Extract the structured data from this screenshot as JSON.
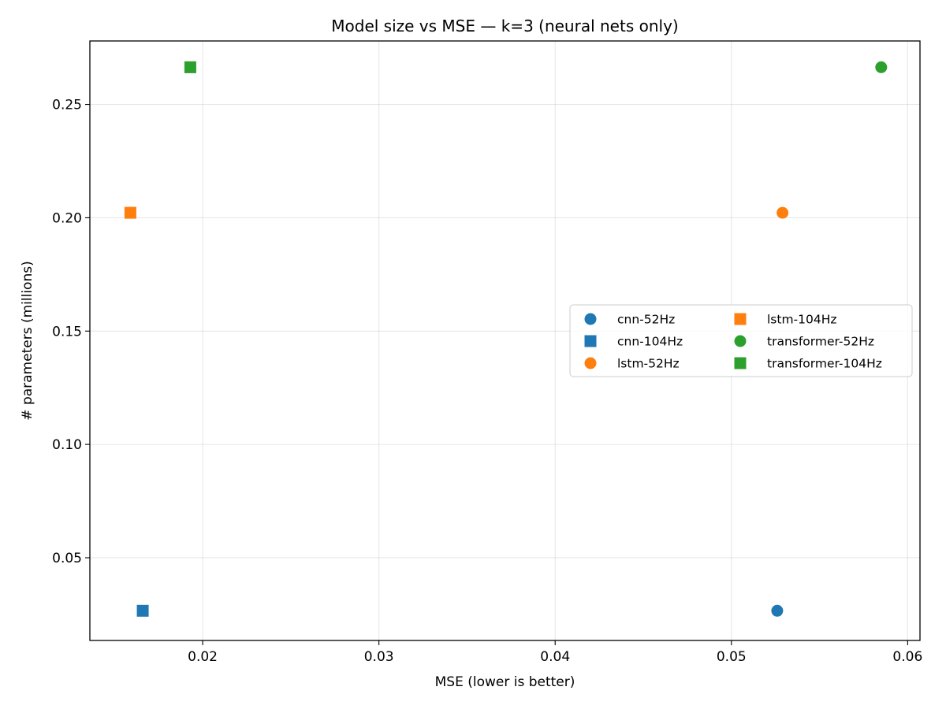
{
  "chart_data": {
    "type": "scatter",
    "title": "Model size vs MSE — k=3  (neural nets only)",
    "xlabel": "MSE (lower is better)",
    "ylabel": "# parameters (millions)",
    "xlim": [
      0.0136,
      0.0607
    ],
    "ylim": [
      0.0135,
      0.278
    ],
    "xticks": [
      0.02,
      0.03,
      0.04,
      0.05,
      0.06
    ],
    "xtick_labels": [
      "0.02",
      "0.03",
      "0.04",
      "0.05",
      "0.06"
    ],
    "yticks": [
      0.05,
      0.1,
      0.15,
      0.2,
      0.25
    ],
    "ytick_labels": [
      "0.05",
      "0.10",
      "0.15",
      "0.20",
      "0.25"
    ],
    "grid": true,
    "legend": {
      "placement": "center-right",
      "columns": 2
    },
    "series": [
      {
        "name": "cnn-52Hz",
        "color": "#1f77b4",
        "marker": "circle",
        "points": [
          {
            "x": 0.0526,
            "y": 0.0266
          }
        ]
      },
      {
        "name": "cnn-104Hz",
        "color": "#1f77b4",
        "marker": "square",
        "points": [
          {
            "x": 0.0166,
            "y": 0.0266
          }
        ]
      },
      {
        "name": "lstm-52Hz",
        "color": "#ff7f0e",
        "marker": "circle",
        "points": [
          {
            "x": 0.0529,
            "y": 0.2022
          }
        ]
      },
      {
        "name": "lstm-104Hz",
        "color": "#ff7f0e",
        "marker": "square",
        "points": [
          {
            "x": 0.0159,
            "y": 0.2022
          }
        ]
      },
      {
        "name": "transformer-52Hz",
        "color": "#2ca02c",
        "marker": "circle",
        "points": [
          {
            "x": 0.0585,
            "y": 0.2664
          }
        ]
      },
      {
        "name": "transformer-104Hz",
        "color": "#2ca02c",
        "marker": "square",
        "points": [
          {
            "x": 0.0193,
            "y": 0.2664
          }
        ]
      }
    ]
  }
}
